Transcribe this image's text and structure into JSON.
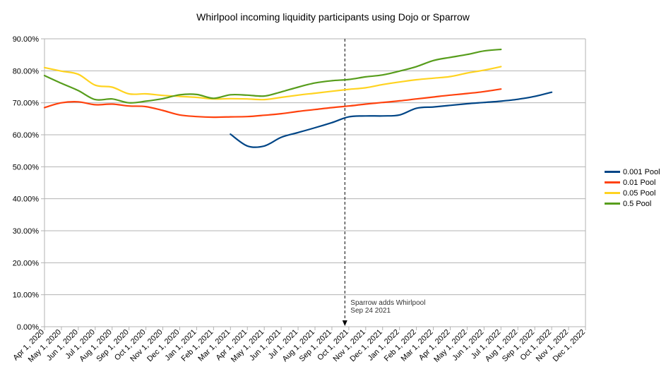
{
  "chart_data": {
    "type": "line",
    "title": "Whirlpool incoming liquidity participants using Dojo or Sparrow",
    "xlabel": "",
    "ylabel": "",
    "ylim": [
      0,
      90
    ],
    "y_ticks": [
      "0.00%",
      "10.00%",
      "20.00%",
      "30.00%",
      "40.00%",
      "50.00%",
      "60.00%",
      "70.00%",
      "80.00%",
      "90.00%"
    ],
    "categories": [
      "Apr 1, 2020",
      "May 1, 2020",
      "Jun 1, 2020",
      "Jul 1, 2020",
      "Aug 1, 2020",
      "Sep 1, 2020",
      "Oct 1, 2020",
      "Nov 1, 2020",
      "Dec 1, 2020",
      "Jan 1, 2021",
      "Feb 1, 2021",
      "Mar 1, 2021",
      "Apr 1, 2021",
      "May 1, 2021",
      "Jun 1, 2021",
      "Jul 1, 2021",
      "Aug 1, 2021",
      "Sep 1, 2021",
      "Oct 1, 2021",
      "Nov 1, 2021",
      "Dec 1, 2021",
      "Jan 1, 2022",
      "Feb 1, 2022",
      "Mar 1, 2022",
      "Apr 1, 2022",
      "May 1, 2022",
      "Jun 1, 2022",
      "Jul 1, 2022",
      "Aug 1, 2022",
      "Sep 1, 2022",
      "Oct 1, 2022",
      "Nov 1, 2022",
      "Dec 1, 2022"
    ],
    "grid": true,
    "legend_position": "right",
    "series": [
      {
        "name": "0.001 Pool",
        "color": "#004586",
        "values": [
          null,
          null,
          null,
          null,
          null,
          null,
          null,
          null,
          null,
          null,
          null,
          60.2,
          56.5,
          56.5,
          59.2,
          60.7,
          62.2,
          63.8,
          65.6,
          65.9,
          65.9,
          66.2,
          68.3,
          68.7,
          69.2,
          69.7,
          70.1,
          70.5,
          71.1,
          72.0,
          73.3,
          null,
          null
        ]
      },
      {
        "name": "0.01 Pool",
        "color": "#ff420e",
        "values": [
          68.5,
          70.0,
          70.3,
          69.4,
          69.6,
          69.0,
          68.8,
          67.6,
          66.2,
          65.7,
          65.5,
          65.6,
          65.7,
          66.1,
          66.6,
          67.3,
          67.9,
          68.5,
          69.0,
          69.6,
          70.1,
          70.6,
          71.2,
          71.8,
          72.4,
          72.9,
          73.5,
          74.3,
          null,
          null,
          null,
          null,
          null
        ]
      },
      {
        "name": "0.05 Pool",
        "color": "#ffd320",
        "values": [
          81.0,
          79.9,
          78.9,
          75.5,
          74.9,
          72.8,
          72.8,
          72.3,
          72.0,
          71.7,
          71.2,
          71.3,
          71.2,
          71.0,
          71.7,
          72.4,
          73.0,
          73.6,
          74.2,
          74.7,
          75.7,
          76.5,
          77.2,
          77.7,
          78.2,
          79.3,
          80.2,
          81.3,
          null,
          null,
          null,
          null,
          null
        ]
      },
      {
        "name": "0.5 Pool",
        "color": "#579d1c",
        "values": [
          78.5,
          76.1,
          73.8,
          71.0,
          71.2,
          70.0,
          70.5,
          71.3,
          72.5,
          72.6,
          71.4,
          72.5,
          72.4,
          72.1,
          73.4,
          74.9,
          76.2,
          76.9,
          77.3,
          78.1,
          78.7,
          79.9,
          81.3,
          83.2,
          84.2,
          85.1,
          86.2,
          86.7,
          null,
          null,
          null,
          null,
          null
        ]
      }
    ],
    "annotation": {
      "lines": [
        "Sparrow adds Whirlpool",
        "Sep 24 2021"
      ],
      "at_category": "Sep 24, 2021"
    }
  }
}
